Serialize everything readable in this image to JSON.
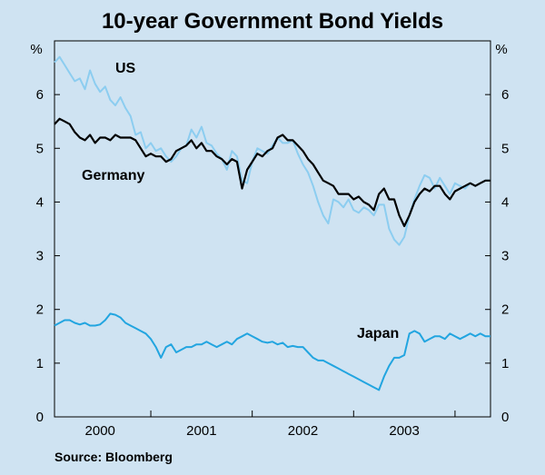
{
  "chart_data": {
    "type": "line",
    "title": "10-year Government Bond Yields",
    "unit_left": "%",
    "unit_right": "%",
    "source": "Source: Bloomberg",
    "ylim": [
      0,
      7
    ],
    "yticks": [
      "0",
      "1",
      "2",
      "3",
      "4",
      "5",
      "6"
    ],
    "xlim": [
      1999.55,
      2003.85
    ],
    "year_dividers": [
      2000,
      2001,
      2002,
      2003
    ],
    "xticks": [
      {
        "label": "2000",
        "x": 2000.0
      },
      {
        "label": "2001",
        "x": 2001.0
      },
      {
        "label": "2002",
        "x": 2002.0
      },
      {
        "label": "2003",
        "x": 2003.0
      }
    ],
    "colors": {
      "US": "#8ccdf0",
      "Germany": "#000000",
      "Japan": "#22a5e0",
      "background": "#cfe3f2"
    },
    "series": [
      {
        "name": "US",
        "x": [
          1999.55,
          1999.6,
          1999.65,
          1999.7,
          1999.75,
          1999.8,
          1999.85,
          1999.9,
          1999.95,
          2000.0,
          2000.05,
          2000.1,
          2000.15,
          2000.2,
          2000.25,
          2000.3,
          2000.35,
          2000.4,
          2000.45,
          2000.5,
          2000.55,
          2000.6,
          2000.65,
          2000.7,
          2000.75,
          2000.8,
          2000.85,
          2000.9,
          2000.95,
          2001.0,
          2001.05,
          2001.1,
          2001.15,
          2001.2,
          2001.25,
          2001.3,
          2001.35,
          2001.4,
          2001.45,
          2001.5,
          2001.55,
          2001.6,
          2001.65,
          2001.7,
          2001.75,
          2001.8,
          2001.85,
          2001.9,
          2001.95,
          2002.0,
          2002.05,
          2002.1,
          2002.15,
          2002.2,
          2002.25,
          2002.3,
          2002.35,
          2002.4,
          2002.45,
          2002.5,
          2002.55,
          2002.6,
          2002.65,
          2002.7,
          2002.75,
          2002.8,
          2002.85,
          2002.9,
          2002.95,
          2003.0,
          2003.05,
          2003.1,
          2003.15,
          2003.2,
          2003.25,
          2003.3,
          2003.35,
          2003.4,
          2003.45,
          2003.5,
          2003.55,
          2003.6,
          2003.65,
          2003.7,
          2003.75,
          2003.8,
          2003.85
        ],
        "values": [
          6.6,
          6.7,
          6.55,
          6.4,
          6.25,
          6.3,
          6.1,
          6.45,
          6.2,
          6.05,
          6.15,
          5.9,
          5.8,
          5.95,
          5.75,
          5.6,
          5.25,
          5.3,
          5.0,
          5.1,
          4.95,
          5.0,
          4.85,
          4.75,
          4.85,
          5.0,
          5.05,
          5.35,
          5.2,
          5.4,
          5.1,
          5.05,
          4.9,
          4.8,
          4.6,
          4.95,
          4.85,
          4.4,
          4.35,
          4.75,
          5.0,
          4.95,
          4.9,
          5.05,
          5.2,
          5.1,
          5.1,
          5.15,
          4.9,
          4.7,
          4.55,
          4.3,
          4.0,
          3.75,
          3.6,
          4.05,
          4.0,
          3.9,
          4.05,
          3.85,
          3.8,
          3.9,
          3.85,
          3.75,
          3.95,
          3.95,
          3.5,
          3.3,
          3.2,
          3.35,
          3.75,
          4.05,
          4.3,
          4.5,
          4.45,
          4.25,
          4.45,
          4.3,
          4.15,
          4.35,
          4.3,
          4.25,
          4.35,
          4.3,
          4.35,
          4.4,
          4.4
        ]
      },
      {
        "name": "Germany",
        "x": [
          1999.55,
          1999.6,
          1999.65,
          1999.7,
          1999.75,
          1999.8,
          1999.85,
          1999.9,
          1999.95,
          2000.0,
          2000.05,
          2000.1,
          2000.15,
          2000.2,
          2000.25,
          2000.3,
          2000.35,
          2000.4,
          2000.45,
          2000.5,
          2000.55,
          2000.6,
          2000.65,
          2000.7,
          2000.75,
          2000.8,
          2000.85,
          2000.9,
          2000.95,
          2001.0,
          2001.05,
          2001.1,
          2001.15,
          2001.2,
          2001.25,
          2001.3,
          2001.35,
          2001.4,
          2001.45,
          2001.5,
          2001.55,
          2001.6,
          2001.65,
          2001.7,
          2001.75,
          2001.8,
          2001.85,
          2001.9,
          2001.95,
          2002.0,
          2002.05,
          2002.1,
          2002.15,
          2002.2,
          2002.25,
          2002.3,
          2002.35,
          2002.4,
          2002.45,
          2002.5,
          2002.55,
          2002.6,
          2002.65,
          2002.7,
          2002.75,
          2002.8,
          2002.85,
          2002.9,
          2002.95,
          2003.0,
          2003.05,
          2003.1,
          2003.15,
          2003.2,
          2003.25,
          2003.3,
          2003.35,
          2003.4,
          2003.45,
          2003.5,
          2003.55,
          2003.6,
          2003.65,
          2003.7,
          2003.75,
          2003.8,
          2003.85
        ],
        "values": [
          5.45,
          5.55,
          5.5,
          5.45,
          5.3,
          5.2,
          5.15,
          5.25,
          5.1,
          5.2,
          5.2,
          5.15,
          5.25,
          5.2,
          5.2,
          5.2,
          5.15,
          5.0,
          4.85,
          4.9,
          4.85,
          4.85,
          4.75,
          4.8,
          4.95,
          5.0,
          5.05,
          5.15,
          5.0,
          5.1,
          4.95,
          4.95,
          4.85,
          4.8,
          4.7,
          4.8,
          4.75,
          4.25,
          4.6,
          4.75,
          4.9,
          4.85,
          4.95,
          5.0,
          5.2,
          5.25,
          5.15,
          5.15,
          5.05,
          4.95,
          4.8,
          4.7,
          4.55,
          4.4,
          4.35,
          4.3,
          4.15,
          4.15,
          4.15,
          4.05,
          4.1,
          4.0,
          3.95,
          3.85,
          4.15,
          4.25,
          4.05,
          4.05,
          3.75,
          3.55,
          3.75,
          4.0,
          4.15,
          4.25,
          4.2,
          4.3,
          4.3,
          4.15,
          4.05,
          4.2,
          4.25,
          4.3,
          4.35,
          4.3,
          4.35,
          4.4,
          4.4
        ]
      },
      {
        "name": "Japan",
        "x": [
          1999.55,
          1999.6,
          1999.65,
          1999.7,
          1999.75,
          1999.8,
          1999.85,
          1999.9,
          1999.95,
          2000.0,
          2000.05,
          2000.1,
          2000.15,
          2000.2,
          2000.25,
          2000.3,
          2000.35,
          2000.4,
          2000.45,
          2000.5,
          2000.55,
          2000.6,
          2000.65,
          2000.7,
          2000.75,
          2000.8,
          2000.85,
          2000.9,
          2000.95,
          2001.0,
          2001.05,
          2001.1,
          2001.15,
          2001.2,
          2001.25,
          2001.3,
          2001.35,
          2001.4,
          2001.45,
          2001.5,
          2001.55,
          2001.6,
          2001.65,
          2001.7,
          2001.75,
          2001.8,
          2001.85,
          2001.9,
          2001.95,
          2002.0,
          2002.05,
          2002.1,
          2002.15,
          2002.2,
          2002.25,
          2002.3,
          2002.35,
          2002.4,
          2002.45,
          2002.5,
          2002.55,
          2002.6,
          2002.65,
          2002.7,
          2002.75,
          2002.8,
          2002.85,
          2002.9,
          2002.95,
          2003.0,
          2003.05,
          2003.1,
          2003.15,
          2003.2,
          2003.25,
          2003.3,
          2003.35,
          2003.4,
          2003.45,
          2003.5,
          2003.55,
          2003.6,
          2003.65,
          2003.7,
          2003.75,
          2003.8,
          2003.85
        ],
        "values": [
          1.7,
          1.75,
          1.8,
          1.8,
          1.75,
          1.72,
          1.75,
          1.7,
          1.7,
          1.72,
          1.8,
          1.92,
          1.9,
          1.85,
          1.75,
          1.7,
          1.65,
          1.6,
          1.55,
          1.45,
          1.3,
          1.1,
          1.3,
          1.35,
          1.2,
          1.25,
          1.3,
          1.3,
          1.35,
          1.35,
          1.4,
          1.35,
          1.3,
          1.35,
          1.4,
          1.35,
          1.45,
          1.5,
          1.55,
          1.5,
          1.45,
          1.4,
          1.38,
          1.4,
          1.35,
          1.38,
          1.3,
          1.32,
          1.3,
          1.3,
          1.2,
          1.1,
          1.05,
          1.05,
          1.0,
          0.95,
          0.9,
          0.85,
          0.8,
          0.75,
          0.7,
          0.65,
          0.6,
          0.55,
          0.5,
          0.75,
          0.95,
          1.1,
          1.1,
          1.15,
          1.55,
          1.6,
          1.55,
          1.4,
          1.45,
          1.5,
          1.5,
          1.45,
          1.55,
          1.5,
          1.45,
          1.5,
          1.55,
          1.5,
          1.55,
          1.5,
          1.5
        ]
      }
    ],
    "labels": {
      "US": "US",
      "Germany": "Germany",
      "Japan": "Japan"
    }
  }
}
